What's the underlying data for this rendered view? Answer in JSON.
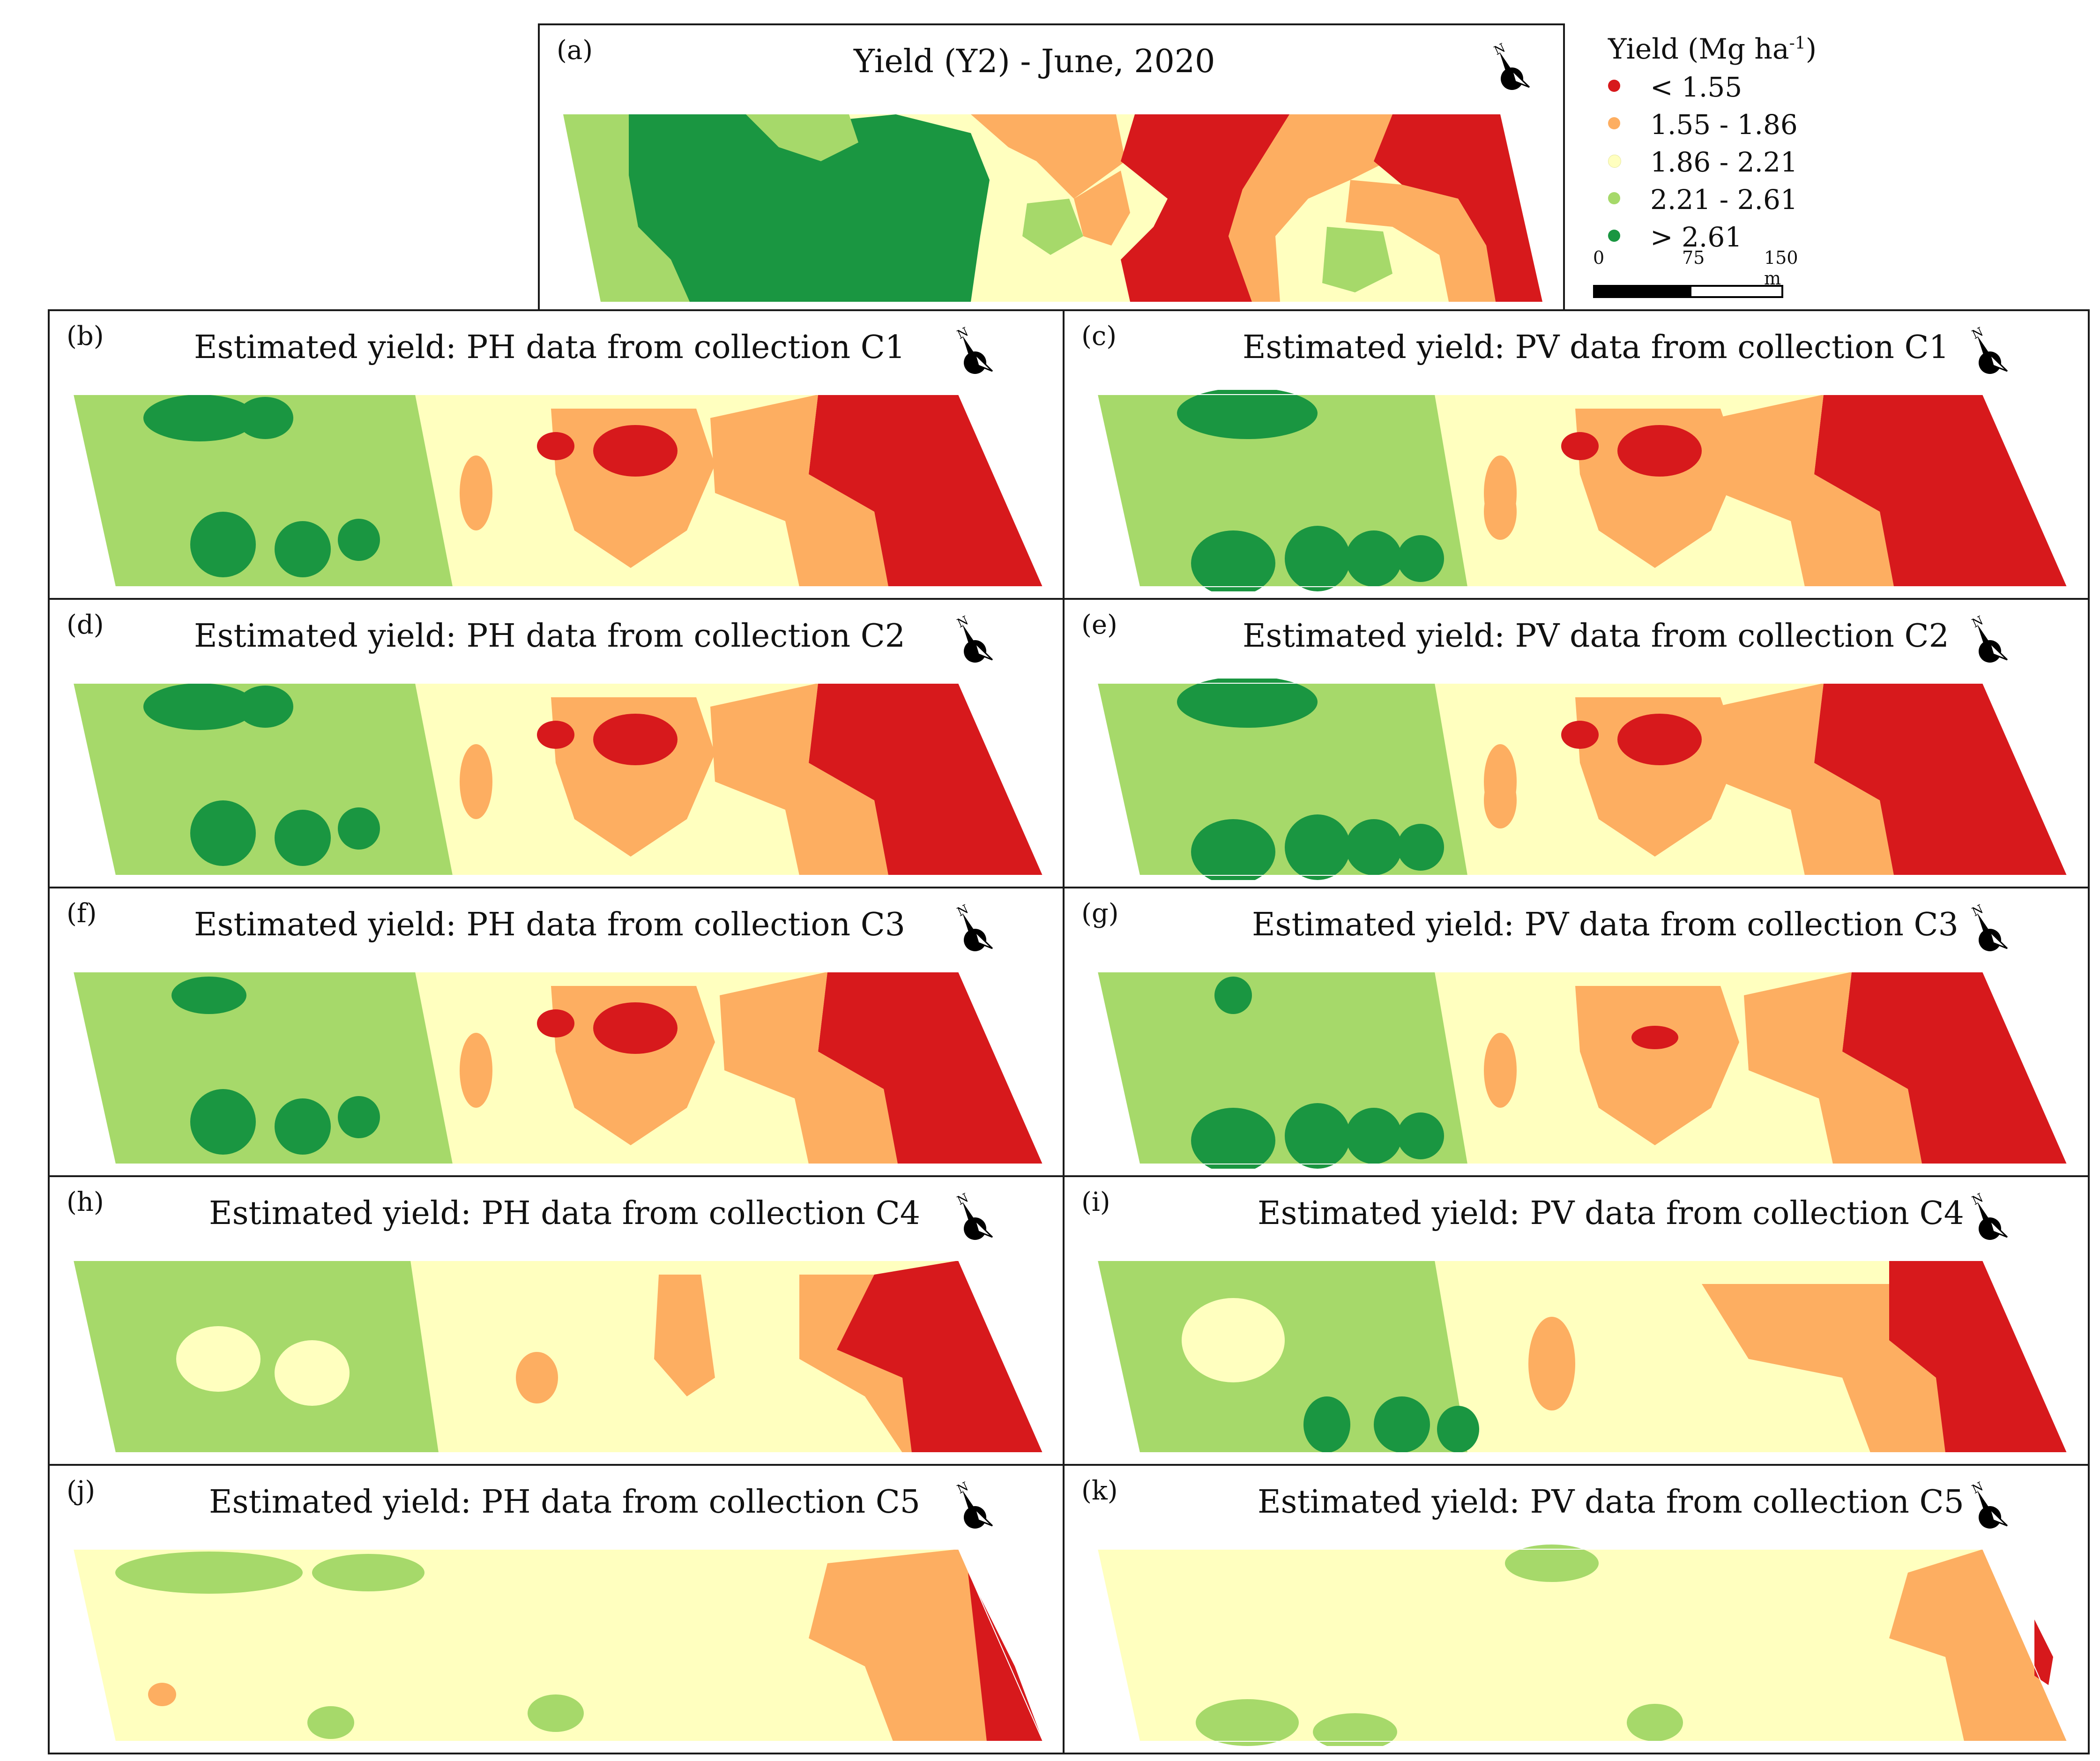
{
  "figure": {
    "legend": {
      "title_prefix": "Yield (Mg ha",
      "title_sup": "-1",
      "title_suffix": ")",
      "classes": [
        {
          "label": "< 1.55",
          "color": "#d7191c"
        },
        {
          "label": "1.55 - 1.86",
          "color": "#fdae61"
        },
        {
          "label": "1.86 - 2.21",
          "color": "#ffffbf"
        },
        {
          "label": "2.21 - 2.61",
          "color": "#a6d96a"
        },
        {
          "label": "> 2.61",
          "color": "#1a9641"
        }
      ]
    },
    "scale_bar": {
      "ticks": [
        "0",
        "75",
        "150 m"
      ]
    },
    "panels": [
      {
        "id": "a",
        "letter": "(a)",
        "title": "Yield (Y2) - June, 2020"
      },
      {
        "id": "b",
        "letter": "(b)",
        "title": "Estimated yield: PH data from collection C1"
      },
      {
        "id": "c",
        "letter": "(c)",
        "title": "Estimated yield: PV data from collection C1"
      },
      {
        "id": "d",
        "letter": "(d)",
        "title": "Estimated yield: PH data from collection C2"
      },
      {
        "id": "e",
        "letter": "(e)",
        "title": "Estimated yield: PV data from collection C2"
      },
      {
        "id": "f",
        "letter": "(f)",
        "title": "Estimated yield: PH data from collection C3"
      },
      {
        "id": "g",
        "letter": "(g)",
        "title": "Estimated yield: PV data from collection C3"
      },
      {
        "id": "h",
        "letter": "(h)",
        "title": "Estimated yield: PH data from collection C4"
      },
      {
        "id": "i",
        "letter": "(i)",
        "title": "Estimated yield: PV data from collection C4"
      },
      {
        "id": "j",
        "letter": "(j)",
        "title": "Estimated yield: PH data from collection C5"
      },
      {
        "id": "k",
        "letter": "(k)",
        "title": "Estimated yield: PV data from collection C5"
      }
    ],
    "north_arrow_label": "N"
  }
}
